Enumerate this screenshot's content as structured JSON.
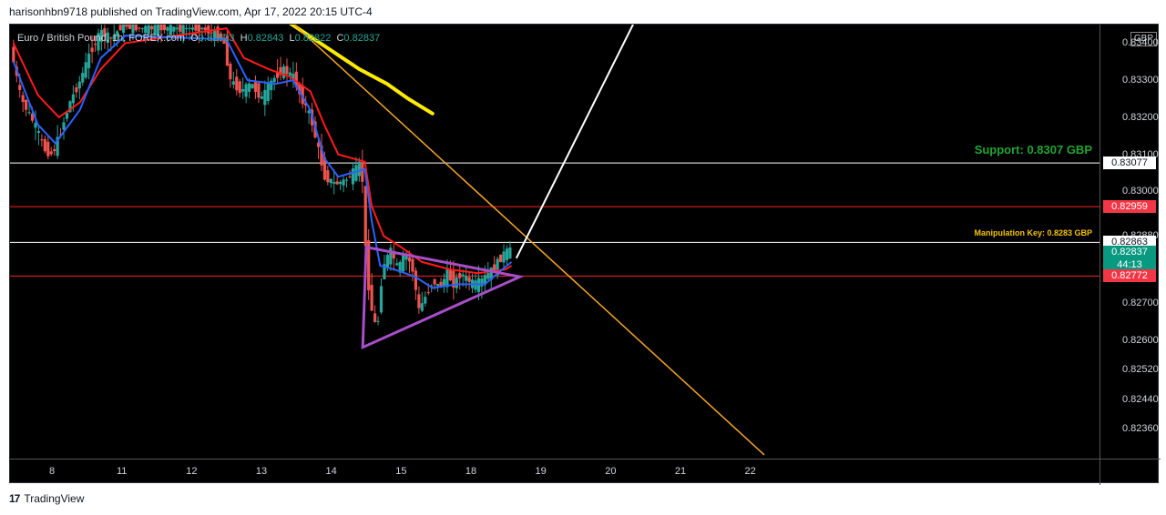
{
  "header": {
    "published_line": "harisonhbn9718 published on TradingView.com, Apr 17, 2022 20:15 UTC-4"
  },
  "legend": {
    "symbol": "Euro / British Pound, 1h, FOREX.com",
    "o_label": "O",
    "o_value": "0.82823",
    "h_label": "H",
    "h_value": "0.82843",
    "l_label": "L",
    "l_value": "0.82822",
    "c_label": "C",
    "c_value": "0.82837"
  },
  "currency_badge": "GBP",
  "footer": {
    "brand": "TradingView",
    "logo_text": "17"
  },
  "colors": {
    "background": "#000000",
    "up_candle": "#26a69a",
    "down_candle": "#ef5350",
    "ema_fast": "#2962ff",
    "ema_slow": "#ff1a1a",
    "ma_long": "#ffeb00",
    "trendline": "#f5a623",
    "triangle": "#a84ec9",
    "projection": "#ffffff"
  },
  "chart_data": {
    "type": "candlestick",
    "instrument": "EUR/GBP",
    "timeframe": "1h",
    "ylim": [
      0.8228,
      0.8345
    ],
    "xlim": [
      7.4,
      23.0
    ],
    "y_ticks": [
      "0.83400",
      "0.83300",
      "0.83200",
      "0.83100",
      "0.83000",
      "0.82880",
      "0.82700",
      "0.82600",
      "0.82520",
      "0.82440",
      "0.82360"
    ],
    "y_tick_values": [
      0.834,
      0.833,
      0.832,
      0.831,
      0.83,
      0.8288,
      0.827,
      0.826,
      0.8252,
      0.8244,
      0.8236
    ],
    "x_ticks": [
      "8",
      "11",
      "12",
      "13",
      "14",
      "15",
      "18",
      "19",
      "20",
      "21",
      "22"
    ],
    "x_tick_values": [
      8,
      9,
      10,
      11,
      12,
      13,
      14,
      15,
      16,
      17,
      18
    ],
    "price_tags": [
      {
        "label": "0.83077",
        "value": 0.83077,
        "bg": "#ffffff",
        "fg": "#131722"
      },
      {
        "label": "0.82959",
        "value": 0.82959,
        "bg": "#f23645",
        "fg": "#ffffff"
      },
      {
        "label": "0.82863",
        "value": 0.82863,
        "bg": "#ffffff",
        "fg": "#131722"
      },
      {
        "label": "0.82837",
        "sublabel": "44:13",
        "value": 0.82837,
        "bg": "#089981",
        "fg": "#ffffff"
      },
      {
        "label": "0.82772",
        "value": 0.82772,
        "bg": "#f23645",
        "fg": "#ffffff"
      }
    ],
    "horizontal_levels": [
      {
        "value": 0.83077,
        "color": "#ffffff"
      },
      {
        "value": 0.82959,
        "color": "#ff2222"
      },
      {
        "value": 0.82863,
        "color": "#ffffff"
      },
      {
        "value": 0.82772,
        "color": "#ff2222"
      }
    ],
    "annotations": {
      "support": "Support: 0.8307 GBP",
      "manipulation": "Manipulation Key: 0.8283 GBP"
    },
    "price_path": [
      [
        7.45,
        0.8339
      ],
      [
        7.6,
        0.8325
      ],
      [
        7.8,
        0.8318
      ],
      [
        7.95,
        0.8311
      ],
      [
        8.05,
        0.831
      ],
      [
        8.15,
        0.8315
      ],
      [
        8.3,
        0.8324
      ],
      [
        8.45,
        0.833
      ],
      [
        8.6,
        0.8338
      ],
      [
        8.75,
        0.8343
      ],
      [
        8.9,
        0.8341
      ],
      [
        9.05,
        0.8345
      ],
      [
        9.3,
        0.8344
      ],
      [
        9.6,
        0.8344
      ],
      [
        9.9,
        0.8344
      ],
      [
        10.2,
        0.8344
      ],
      [
        10.5,
        0.8341
      ],
      [
        10.6,
        0.833
      ],
      [
        10.75,
        0.8327
      ],
      [
        10.9,
        0.8329
      ],
      [
        11.05,
        0.8325
      ],
      [
        11.2,
        0.833
      ],
      [
        11.35,
        0.8333
      ],
      [
        11.5,
        0.8331
      ],
      [
        11.6,
        0.8326
      ],
      [
        11.75,
        0.832
      ],
      [
        11.85,
        0.8312
      ],
      [
        11.95,
        0.8304
      ],
      [
        12.1,
        0.8302
      ],
      [
        12.25,
        0.8303
      ],
      [
        12.4,
        0.8306
      ],
      [
        12.48,
        0.8308
      ],
      [
        12.52,
        0.8288
      ],
      [
        12.6,
        0.827
      ],
      [
        12.7,
        0.8262
      ],
      [
        12.78,
        0.828
      ],
      [
        12.9,
        0.8284
      ],
      [
        13.0,
        0.8279
      ],
      [
        13.1,
        0.8283
      ],
      [
        13.2,
        0.828
      ],
      [
        13.3,
        0.8268
      ],
      [
        13.4,
        0.8272
      ],
      [
        13.5,
        0.8276
      ],
      [
        13.6,
        0.8274
      ],
      [
        13.7,
        0.8278
      ],
      [
        13.8,
        0.8275
      ],
      [
        13.9,
        0.8278
      ],
      [
        14.0,
        0.8276
      ],
      [
        14.1,
        0.8275
      ],
      [
        14.2,
        0.8276
      ],
      [
        14.3,
        0.8278
      ],
      [
        14.4,
        0.828
      ],
      [
        14.5,
        0.8283
      ],
      [
        14.58,
        0.8284
      ]
    ],
    "ema_fast": [
      [
        7.45,
        0.8335
      ],
      [
        7.8,
        0.8318
      ],
      [
        8.05,
        0.8313
      ],
      [
        8.4,
        0.8322
      ],
      [
        8.7,
        0.8336
      ],
      [
        9.05,
        0.8342
      ],
      [
        10.5,
        0.8341
      ],
      [
        10.8,
        0.833
      ],
      [
        11.2,
        0.8329
      ],
      [
        11.45,
        0.833
      ],
      [
        11.7,
        0.8322
      ],
      [
        11.9,
        0.8309
      ],
      [
        12.1,
        0.8304
      ],
      [
        12.48,
        0.8306
      ],
      [
        12.58,
        0.8292
      ],
      [
        12.7,
        0.828
      ],
      [
        12.9,
        0.8279
      ],
      [
        13.2,
        0.8277
      ],
      [
        13.45,
        0.8274
      ],
      [
        13.8,
        0.8275
      ],
      [
        14.2,
        0.8275
      ],
      [
        14.45,
        0.8279
      ],
      [
        14.58,
        0.8281
      ]
    ],
    "ema_slow": [
      [
        7.45,
        0.834
      ],
      [
        7.8,
        0.8326
      ],
      [
        8.1,
        0.832
      ],
      [
        8.4,
        0.8324
      ],
      [
        8.7,
        0.8333
      ],
      [
        9.05,
        0.834
      ],
      [
        10.5,
        0.8344
      ],
      [
        10.75,
        0.8336
      ],
      [
        11.1,
        0.8333
      ],
      [
        11.4,
        0.8331
      ],
      [
        11.7,
        0.8327
      ],
      [
        11.9,
        0.8318
      ],
      [
        12.1,
        0.831
      ],
      [
        12.48,
        0.8308
      ],
      [
        12.58,
        0.8296
      ],
      [
        12.75,
        0.8288
      ],
      [
        13.0,
        0.8285
      ],
      [
        13.3,
        0.8281
      ],
      [
        13.7,
        0.8279
      ],
      [
        14.1,
        0.8278
      ],
      [
        14.5,
        0.8279
      ],
      [
        14.58,
        0.828
      ]
    ],
    "ma_long": [
      [
        11.2,
        0.8348
      ],
      [
        11.6,
        0.8343
      ],
      [
        12.0,
        0.8338
      ],
      [
        12.4,
        0.8333
      ],
      [
        12.8,
        0.8329
      ],
      [
        13.1,
        0.8325
      ],
      [
        13.45,
        0.8321
      ]
    ],
    "trendline": [
      [
        11.35,
        0.8347
      ],
      [
        18.2,
        0.8229
      ]
    ],
    "triangle": [
      [
        12.5,
        0.8285
      ],
      [
        14.7,
        0.8277
      ],
      [
        12.45,
        0.8258
      ]
    ],
    "projection_line": [
      [
        14.65,
        0.8282
      ],
      [
        16.4,
        0.8348
      ]
    ]
  }
}
